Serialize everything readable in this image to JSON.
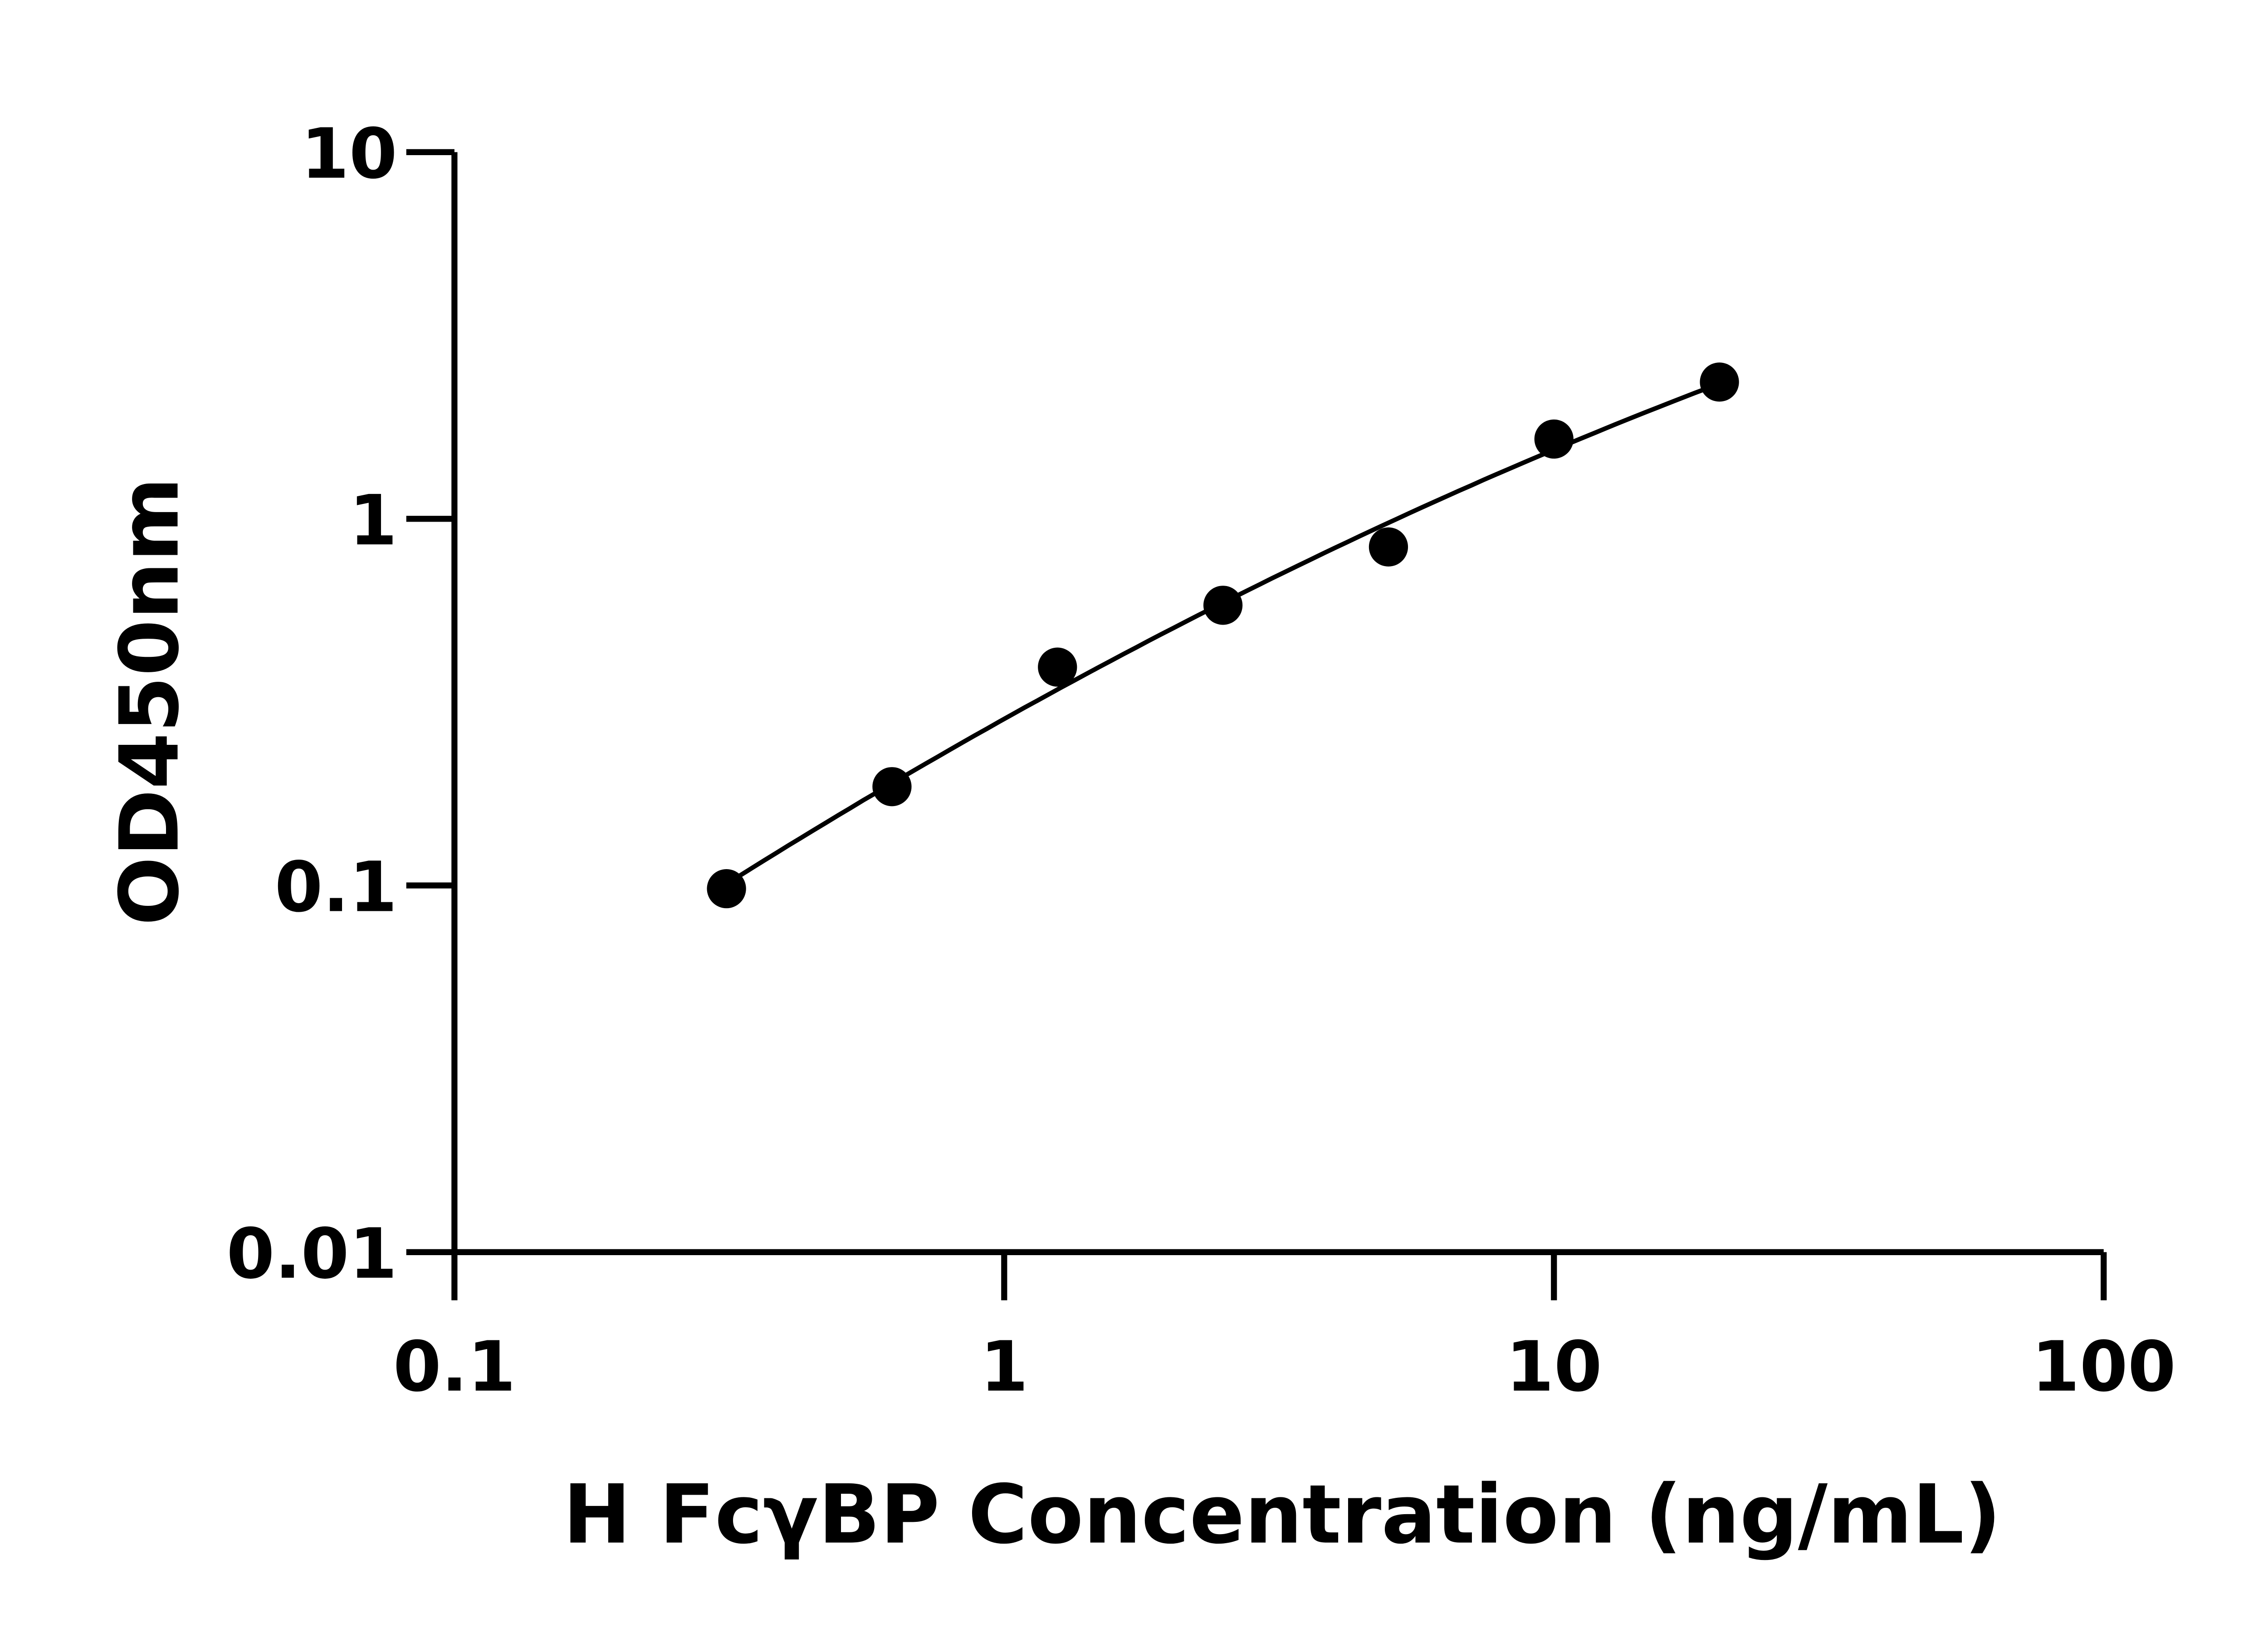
{
  "chart_data": {
    "type": "scatter",
    "title": "",
    "xlabel": "H FcγBP Concentration (ng/mL)",
    "ylabel": "OD450nm",
    "x_scale": "log",
    "y_scale": "log",
    "xlim": [
      0.1,
      100
    ],
    "ylim": [
      0.01,
      10
    ],
    "x_ticks": [
      "0.1",
      "1",
      "10",
      "100"
    ],
    "y_ticks": [
      "0.01",
      "0.1",
      "1",
      "10"
    ],
    "grid": false,
    "fit_curve": true,
    "colors": {
      "points": "#000000",
      "curve": "#000000"
    },
    "series": [
      {
        "x": [
          0.3125,
          0.625,
          1.25,
          2.5,
          5,
          10,
          20
        ],
        "y": [
          0.098,
          0.186,
          0.394,
          0.581,
          0.838,
          1.65,
          2.36
        ]
      }
    ]
  }
}
